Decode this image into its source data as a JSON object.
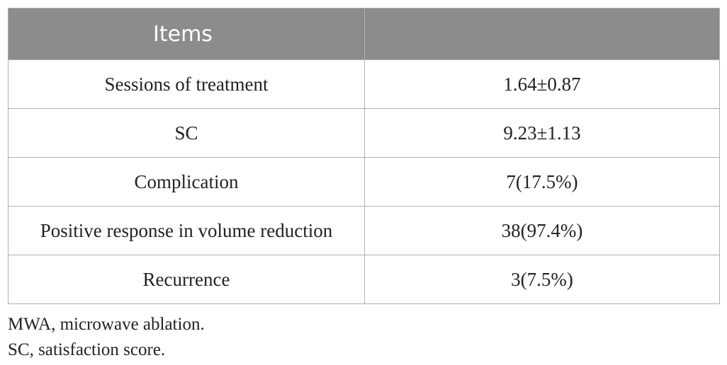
{
  "table": {
    "headers": [
      "Items",
      ""
    ],
    "rows": [
      [
        "Sessions of treatment",
        "1.64±0.87"
      ],
      [
        "SC",
        "9.23±1.13"
      ],
      [
        "Complication",
        "7(17.5%)"
      ],
      [
        "Positive response in volume reduction",
        "38(97.4%)"
      ],
      [
        "Recurrence",
        "3(7.5%)"
      ]
    ]
  },
  "footnotes": [
    "MWA, microwave ablation.",
    "SC, satisfaction score."
  ]
}
